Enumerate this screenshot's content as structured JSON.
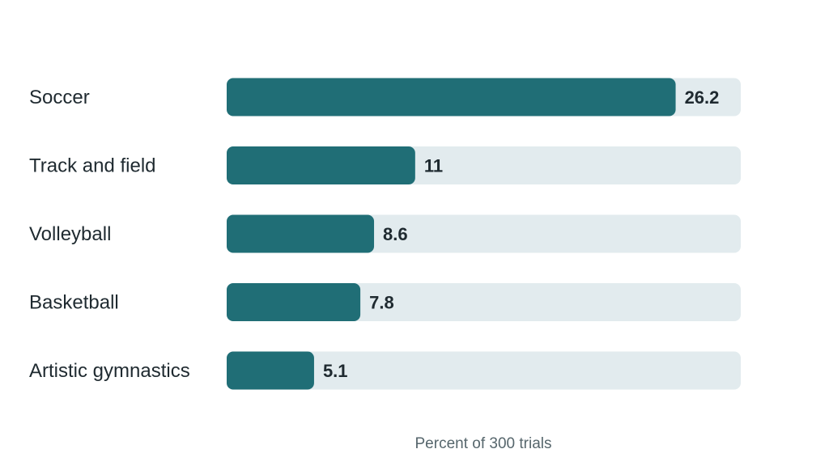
{
  "chart_data": {
    "type": "bar",
    "orientation": "horizontal",
    "categories": [
      "Soccer",
      "Track and field",
      "Volleyball",
      "Basketball",
      "Artistic gymnastics"
    ],
    "values": [
      26.2,
      11,
      8.6,
      7.8,
      5.1
    ],
    "value_labels": [
      "26.2",
      "11",
      "8.6",
      "7.8",
      "5.1"
    ],
    "xlabel": "Percent of 300 trials",
    "xlim": [
      0,
      30
    ],
    "grid": false,
    "legend": "none",
    "bar_color": "#206e76",
    "track_color": "#e2ebee"
  }
}
